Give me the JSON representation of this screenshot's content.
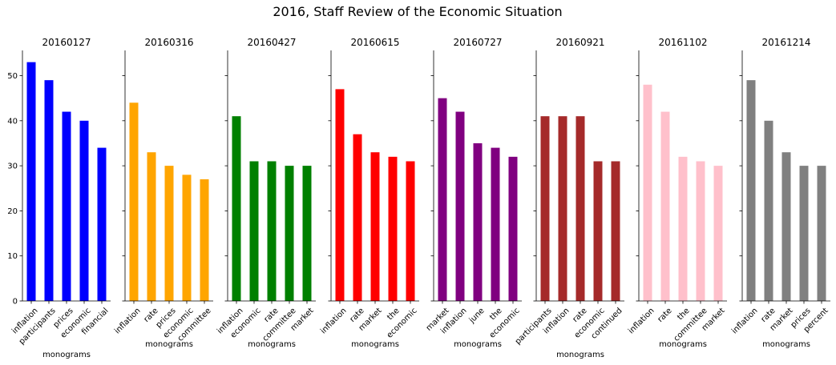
{
  "figure_title": "2016, Staff Review of the Economic Situation",
  "chart_data": [
    {
      "type": "bar",
      "title": "20160127",
      "categories": [
        "inflation",
        "participants",
        "prices",
        "economic",
        "financial"
      ],
      "values": [
        53,
        49,
        42,
        40,
        34
      ],
      "color": "#0000ff",
      "xlabel": "monograms",
      "ylim": [
        0,
        55.6
      ]
    },
    {
      "type": "bar",
      "title": "20160316",
      "categories": [
        "inflation",
        "rate",
        "prices",
        "economic",
        "committee"
      ],
      "values": [
        44,
        33,
        30,
        28,
        27
      ],
      "color": "#ffa500",
      "xlabel": "monograms",
      "ylim": [
        0,
        55.6
      ]
    },
    {
      "type": "bar",
      "title": "20160427",
      "categories": [
        "inflation",
        "economic",
        "rate",
        "committee",
        "market"
      ],
      "values": [
        41,
        31,
        31,
        30,
        30
      ],
      "color": "#008000",
      "xlabel": "monograms",
      "ylim": [
        0,
        55.6
      ]
    },
    {
      "type": "bar",
      "title": "20160615",
      "categories": [
        "inflation",
        "rate",
        "market",
        "the",
        "economic"
      ],
      "values": [
        47,
        37,
        33,
        32,
        31
      ],
      "color": "#ff0000",
      "xlabel": "monograms",
      "ylim": [
        0,
        55.6
      ]
    },
    {
      "type": "bar",
      "title": "20160727",
      "categories": [
        "market",
        "inflation",
        "june",
        "the",
        "economic"
      ],
      "values": [
        45,
        42,
        35,
        34,
        32
      ],
      "color": "#800080",
      "xlabel": "monograms",
      "ylim": [
        0,
        55.6
      ]
    },
    {
      "type": "bar",
      "title": "20160921",
      "categories": [
        "participants",
        "inflation",
        "rate",
        "economic",
        "continued"
      ],
      "values": [
        41,
        41,
        41,
        31,
        31
      ],
      "color": "#a52a2a",
      "xlabel": "monograms",
      "ylim": [
        0,
        55.6
      ]
    },
    {
      "type": "bar",
      "title": "20161102",
      "categories": [
        "inflation",
        "rate",
        "the",
        "committee",
        "market"
      ],
      "values": [
        48,
        42,
        32,
        31,
        30
      ],
      "color": "#ffc0cb",
      "xlabel": "monograms",
      "ylim": [
        0,
        55.6
      ]
    },
    {
      "type": "bar",
      "title": "20161214",
      "categories": [
        "inflation",
        "rate",
        "market",
        "prices",
        "percent"
      ],
      "values": [
        49,
        40,
        33,
        30,
        30
      ],
      "color": "#808080",
      "xlabel": "monograms",
      "ylim": [
        0,
        55.6
      ]
    }
  ],
  "y_ticks": [
    0,
    10,
    20,
    30,
    40,
    50
  ]
}
